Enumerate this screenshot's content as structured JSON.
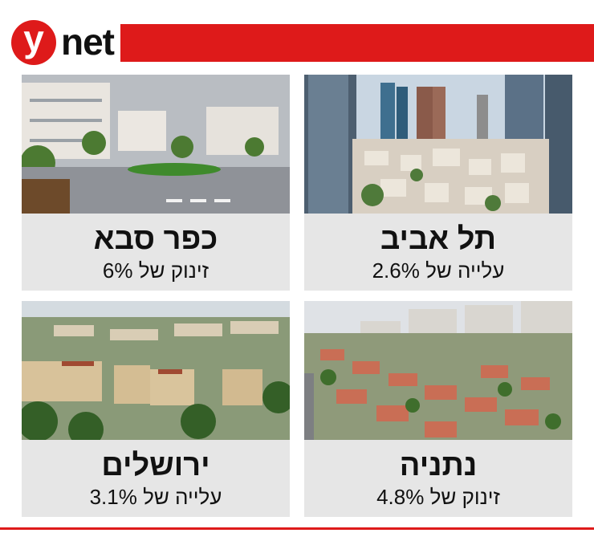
{
  "header": {
    "logo_mark": "y",
    "logo_text": "net"
  },
  "cards": [
    {
      "city": "תל אביב",
      "change": "עלייה של 2.6%"
    },
    {
      "city": "כפר סבא",
      "change": "זינוק של 6%"
    },
    {
      "city": "נתניה",
      "change": "זינוק של 4.8%"
    },
    {
      "city": "ירושלים",
      "change": "עלייה של 3.1%"
    }
  ]
}
